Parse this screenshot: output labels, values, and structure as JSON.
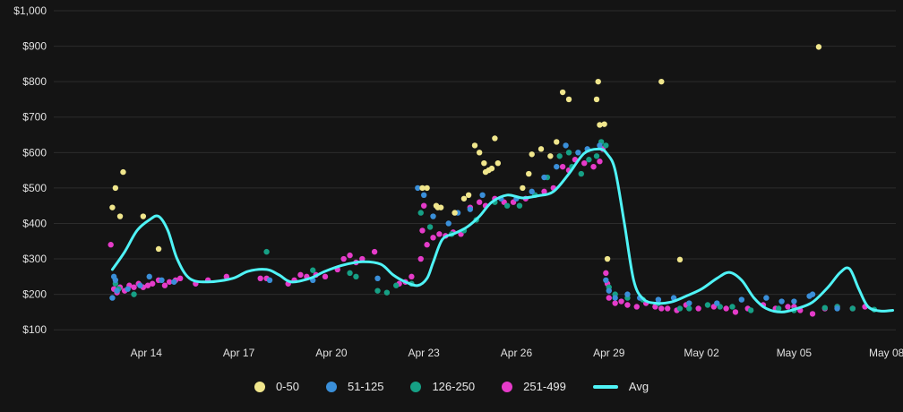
{
  "chart_data": {
    "type": "scatter",
    "title": "",
    "xlabel": "",
    "ylabel": "",
    "ylim": [
      50,
      1000
    ],
    "y_ticks": [
      100,
      200,
      300,
      400,
      500,
      600,
      700,
      800,
      900,
      1000
    ],
    "y_tick_labels": [
      "$100",
      "$200",
      "$300",
      "$400",
      "$500",
      "$600",
      "$700",
      "$800",
      "$900",
      "$1,000"
    ],
    "x_start": "Apr 11",
    "xlim_days": [
      0,
      27.3
    ],
    "x_ticks": [
      3,
      6,
      9,
      12,
      15,
      18,
      21,
      24,
      27
    ],
    "x_tick_labels": [
      "Apr 14",
      "Apr 17",
      "Apr 20",
      "Apr 23",
      "Apr 26",
      "Apr 29",
      "May 02",
      "May 05",
      "May 08"
    ],
    "grid": true,
    "legend_position": "bottom",
    "series": [
      {
        "name": "0-50",
        "color": "#f0e68c",
        "points": [
          [
            1.9,
            445
          ],
          [
            2.0,
            500
          ],
          [
            2.15,
            420
          ],
          [
            2.25,
            545
          ],
          [
            2.9,
            420
          ],
          [
            3.4,
            328
          ],
          [
            11.95,
            500
          ],
          [
            12.1,
            500
          ],
          [
            12.4,
            450
          ],
          [
            12.45,
            445
          ],
          [
            12.55,
            445
          ],
          [
            13.0,
            430
          ],
          [
            13.3,
            470
          ],
          [
            13.45,
            480
          ],
          [
            13.65,
            620
          ],
          [
            13.8,
            600
          ],
          [
            13.95,
            570
          ],
          [
            14.0,
            545
          ],
          [
            14.1,
            550
          ],
          [
            14.2,
            555
          ],
          [
            14.3,
            640
          ],
          [
            14.4,
            570
          ],
          [
            15.2,
            500
          ],
          [
            15.4,
            540
          ],
          [
            15.5,
            595
          ],
          [
            15.8,
            610
          ],
          [
            16.1,
            590
          ],
          [
            16.3,
            630
          ],
          [
            16.5,
            770
          ],
          [
            16.7,
            750
          ],
          [
            17.6,
            750
          ],
          [
            17.65,
            800
          ],
          [
            17.7,
            678
          ],
          [
            17.85,
            680
          ],
          [
            17.95,
            300
          ],
          [
            19.7,
            800
          ],
          [
            20.3,
            298
          ],
          [
            24.8,
            898
          ]
        ]
      },
      {
        "name": "51-125",
        "color": "#3a8fd9",
        "points": [
          [
            1.9,
            190
          ],
          [
            1.95,
            250
          ],
          [
            2.0,
            240
          ],
          [
            2.05,
            210
          ],
          [
            2.4,
            215
          ],
          [
            2.8,
            225
          ],
          [
            3.1,
            250
          ],
          [
            3.5,
            240
          ],
          [
            3.9,
            235
          ],
          [
            7.0,
            240
          ],
          [
            8.4,
            240
          ],
          [
            10.5,
            245
          ],
          [
            11.8,
            500
          ],
          [
            12.0,
            480
          ],
          [
            12.3,
            420
          ],
          [
            12.8,
            400
          ],
          [
            13.1,
            430
          ],
          [
            13.5,
            440
          ],
          [
            13.9,
            480
          ],
          [
            14.5,
            470
          ],
          [
            15.0,
            470
          ],
          [
            15.5,
            490
          ],
          [
            15.9,
            530
          ],
          [
            16.3,
            560
          ],
          [
            16.6,
            620
          ],
          [
            17.0,
            600
          ],
          [
            17.3,
            610
          ],
          [
            17.7,
            620
          ],
          [
            17.9,
            240
          ],
          [
            18.0,
            210
          ],
          [
            18.2,
            190
          ],
          [
            18.6,
            200
          ],
          [
            19.0,
            190
          ],
          [
            19.6,
            185
          ],
          [
            20.1,
            190
          ],
          [
            20.6,
            175
          ],
          [
            21.5,
            175
          ],
          [
            22.3,
            185
          ],
          [
            23.1,
            190
          ],
          [
            23.6,
            180
          ],
          [
            24.0,
            180
          ],
          [
            24.5,
            195
          ],
          [
            24.6,
            200
          ],
          [
            25.4,
            160
          ]
        ]
      },
      {
        "name": "126-250",
        "color": "#16a085",
        "points": [
          [
            2.0,
            230
          ],
          [
            2.1,
            215
          ],
          [
            2.6,
            200
          ],
          [
            6.9,
            320
          ],
          [
            8.4,
            268
          ],
          [
            9.6,
            260
          ],
          [
            9.8,
            250
          ],
          [
            10.5,
            210
          ],
          [
            10.8,
            205
          ],
          [
            11.1,
            225
          ],
          [
            11.6,
            230
          ],
          [
            11.9,
            430
          ],
          [
            12.2,
            390
          ],
          [
            12.9,
            370
          ],
          [
            13.3,
            380
          ],
          [
            13.7,
            410
          ],
          [
            14.3,
            460
          ],
          [
            14.7,
            450
          ],
          [
            15.1,
            450
          ],
          [
            15.6,
            480
          ],
          [
            16.0,
            530
          ],
          [
            16.4,
            590
          ],
          [
            16.7,
            600
          ],
          [
            16.8,
            560
          ],
          [
            17.1,
            540
          ],
          [
            17.35,
            580
          ],
          [
            17.6,
            590
          ],
          [
            17.75,
            630
          ],
          [
            17.9,
            620
          ],
          [
            18.0,
            220
          ],
          [
            18.2,
            200
          ],
          [
            18.6,
            190
          ],
          [
            19.1,
            185
          ],
          [
            19.6,
            175
          ],
          [
            20.3,
            160
          ],
          [
            20.6,
            160
          ],
          [
            21.2,
            170
          ],
          [
            21.6,
            165
          ],
          [
            22.0,
            165
          ],
          [
            22.6,
            155
          ],
          [
            23.5,
            160
          ],
          [
            24.0,
            155
          ],
          [
            25.0,
            162
          ],
          [
            25.4,
            165
          ],
          [
            25.9,
            160
          ],
          [
            26.6,
            157
          ]
        ]
      },
      {
        "name": "251-499",
        "color": "#e53bc9",
        "points": [
          [
            1.85,
            340
          ],
          [
            1.95,
            215
          ],
          [
            2.05,
            205
          ],
          [
            2.15,
            220
          ],
          [
            2.3,
            210
          ],
          [
            2.45,
            225
          ],
          [
            2.6,
            220
          ],
          [
            2.75,
            230
          ],
          [
            2.9,
            220
          ],
          [
            3.05,
            225
          ],
          [
            3.2,
            230
          ],
          [
            3.4,
            240
          ],
          [
            3.6,
            225
          ],
          [
            3.75,
            235
          ],
          [
            3.95,
            240
          ],
          [
            4.1,
            245
          ],
          [
            4.6,
            230
          ],
          [
            5.0,
            240
          ],
          [
            5.6,
            250
          ],
          [
            6.7,
            245
          ],
          [
            6.9,
            245
          ],
          [
            7.6,
            230
          ],
          [
            7.8,
            240
          ],
          [
            8.0,
            255
          ],
          [
            8.2,
            250
          ],
          [
            8.5,
            255
          ],
          [
            8.8,
            250
          ],
          [
            9.2,
            270
          ],
          [
            9.4,
            300
          ],
          [
            9.6,
            310
          ],
          [
            9.8,
            290
          ],
          [
            10.0,
            300
          ],
          [
            10.4,
            320
          ],
          [
            11.2,
            230
          ],
          [
            11.4,
            235
          ],
          [
            11.6,
            250
          ],
          [
            11.9,
            300
          ],
          [
            11.95,
            380
          ],
          [
            12.0,
            450
          ],
          [
            12.1,
            340
          ],
          [
            12.3,
            360
          ],
          [
            12.5,
            370
          ],
          [
            12.7,
            365
          ],
          [
            12.95,
            375
          ],
          [
            13.2,
            370
          ],
          [
            13.5,
            445
          ],
          [
            13.8,
            460
          ],
          [
            14.0,
            450
          ],
          [
            14.3,
            470
          ],
          [
            14.6,
            460
          ],
          [
            14.9,
            460
          ],
          [
            15.3,
            470
          ],
          [
            15.6,
            480
          ],
          [
            15.9,
            490
          ],
          [
            16.2,
            500
          ],
          [
            16.5,
            560
          ],
          [
            16.7,
            550
          ],
          [
            16.9,
            580
          ],
          [
            17.2,
            570
          ],
          [
            17.5,
            560
          ],
          [
            17.7,
            575
          ],
          [
            17.8,
            610
          ],
          [
            17.9,
            260
          ],
          [
            17.95,
            230
          ],
          [
            18.0,
            190
          ],
          [
            18.2,
            175
          ],
          [
            18.4,
            180
          ],
          [
            18.6,
            170
          ],
          [
            18.9,
            165
          ],
          [
            19.2,
            175
          ],
          [
            19.5,
            165
          ],
          [
            19.7,
            160
          ],
          [
            19.9,
            160
          ],
          [
            20.2,
            155
          ],
          [
            20.5,
            170
          ],
          [
            20.9,
            160
          ],
          [
            21.4,
            165
          ],
          [
            21.8,
            160
          ],
          [
            22.1,
            150
          ],
          [
            22.5,
            160
          ],
          [
            23.0,
            170
          ],
          [
            23.4,
            160
          ],
          [
            23.8,
            165
          ],
          [
            24.0,
            165
          ],
          [
            24.2,
            155
          ],
          [
            24.6,
            145
          ],
          [
            25.0,
            160
          ],
          [
            25.4,
            165
          ],
          [
            25.9,
            160
          ],
          [
            26.3,
            165
          ]
        ]
      }
    ],
    "avg": {
      "name": "Avg",
      "color": "#4ff3f6",
      "points": [
        [
          1.9,
          270
        ],
        [
          2.3,
          320
        ],
        [
          2.7,
          380
        ],
        [
          3.1,
          410
        ],
        [
          3.4,
          420
        ],
        [
          3.7,
          380
        ],
        [
          4.0,
          300
        ],
        [
          4.4,
          245
        ],
        [
          5.0,
          235
        ],
        [
          5.8,
          245
        ],
        [
          6.3,
          265
        ],
        [
          6.9,
          270
        ],
        [
          7.3,
          255
        ],
        [
          7.7,
          235
        ],
        [
          8.3,
          245
        ],
        [
          8.8,
          265
        ],
        [
          9.4,
          283
        ],
        [
          10.0,
          292
        ],
        [
          10.6,
          285
        ],
        [
          11.0,
          255
        ],
        [
          11.4,
          235
        ],
        [
          11.8,
          225
        ],
        [
          12.1,
          245
        ],
        [
          12.3,
          290
        ],
        [
          12.6,
          355
        ],
        [
          13.0,
          372
        ],
        [
          13.4,
          390
        ],
        [
          13.8,
          420
        ],
        [
          14.2,
          460
        ],
        [
          14.7,
          480
        ],
        [
          15.2,
          472
        ],
        [
          15.7,
          478
        ],
        [
          16.2,
          490
        ],
        [
          16.7,
          540
        ],
        [
          17.2,
          598
        ],
        [
          17.7,
          610
        ],
        [
          17.95,
          595
        ],
        [
          18.2,
          550
        ],
        [
          18.5,
          400
        ],
        [
          18.8,
          240
        ],
        [
          19.1,
          188
        ],
        [
          19.5,
          175
        ],
        [
          20.0,
          178
        ],
        [
          20.5,
          195
        ],
        [
          21.0,
          215
        ],
        [
          21.5,
          245
        ],
        [
          21.9,
          262
        ],
        [
          22.3,
          240
        ],
        [
          22.7,
          190
        ],
        [
          23.1,
          160
        ],
        [
          23.6,
          150
        ],
        [
          24.1,
          160
        ],
        [
          24.6,
          178
        ],
        [
          25.1,
          220
        ],
        [
          25.5,
          262
        ],
        [
          25.8,
          272
        ],
        [
          26.1,
          215
        ],
        [
          26.4,
          165
        ],
        [
          26.8,
          153
        ],
        [
          27.2,
          155
        ]
      ]
    }
  }
}
